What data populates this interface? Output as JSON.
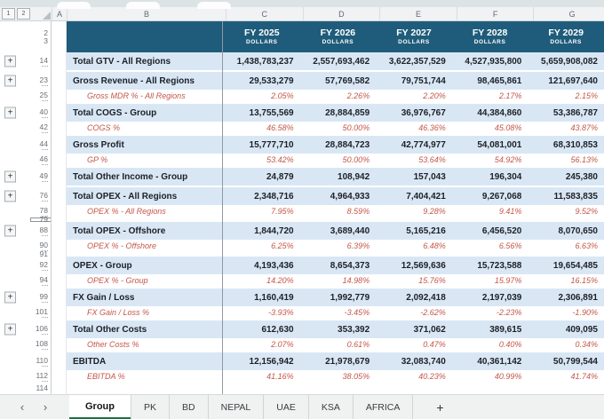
{
  "outline": {
    "level1": "1",
    "level2": "2"
  },
  "columns": [
    "A",
    "B",
    "C",
    "D",
    "E",
    "F",
    "G"
  ],
  "header": {
    "row_nums": [
      "2",
      "3"
    ],
    "years": [
      {
        "label": "FY 2025",
        "unit": "DOLLARS"
      },
      {
        "label": "FY 2026",
        "unit": "DOLLARS"
      },
      {
        "label": "FY 2027",
        "unit": "DOLLARS"
      },
      {
        "label": "FY 2028",
        "unit": "DOLLARS"
      },
      {
        "label": "FY 2029",
        "unit": "DOLLARS"
      }
    ]
  },
  "rows": [
    {
      "num": "14",
      "label": "Total GTV - All Regions",
      "type": "total",
      "plus": true,
      "tick": true,
      "values": [
        "1,438,783,237",
        "2,557,693,462",
        "3,622,357,529",
        "4,527,935,800",
        "5,659,908,082"
      ]
    },
    {
      "num": "23",
      "label": "Gross Revenue - All Regions",
      "type": "total",
      "plus": true,
      "tick": true,
      "gap": true,
      "values": [
        "29,533,279",
        "57,769,582",
        "79,751,744",
        "98,465,861",
        "121,697,640"
      ]
    },
    {
      "num": "25",
      "label": "Gross MDR % - All Regions",
      "type": "pct",
      "tick": true,
      "values": [
        "2.05%",
        "2.26%",
        "2.20%",
        "2.17%",
        "2.15%"
      ]
    },
    {
      "num": "40",
      "label": "Total COGS - Group",
      "type": "total",
      "plus": true,
      "tick": true,
      "gap": true,
      "values": [
        "13,755,569",
        "28,884,859",
        "36,976,767",
        "44,384,860",
        "53,386,787"
      ]
    },
    {
      "num": "42",
      "label": "COGS %",
      "type": "pct",
      "tick": true,
      "values": [
        "46.58%",
        "50.00%",
        "46.36%",
        "45.08%",
        "43.87%"
      ]
    },
    {
      "num": "44",
      "label": "Gross Profit",
      "type": "total",
      "tick": true,
      "gap": true,
      "values": [
        "15,777,710",
        "28,884,723",
        "42,774,977",
        "54,081,001",
        "68,310,853"
      ]
    },
    {
      "num": "46",
      "label": "GP %",
      "type": "pct",
      "tick": true,
      "values": [
        "53.42%",
        "50.00%",
        "53.64%",
        "54.92%",
        "56.13%"
      ]
    },
    {
      "num": "49",
      "label": "Total Other Income - Group",
      "type": "total",
      "plus": true,
      "tick": true,
      "gap": true,
      "values": [
        "24,879",
        "108,942",
        "157,043",
        "196,304",
        "245,380"
      ]
    },
    {
      "num": "76",
      "label": "Total OPEX - All Regions",
      "type": "total",
      "plus": true,
      "tick": true,
      "gap": true,
      "values": [
        "2,348,716",
        "4,964,933",
        "7,404,421",
        "9,267,068",
        "11,583,835"
      ]
    },
    {
      "num": "78",
      "label": "OPEX % - All Regions",
      "type": "pct",
      "tick": true,
      "values": [
        "7.95%",
        "8.59%",
        "9.28%",
        "9.41%",
        "9.52%"
      ]
    },
    {
      "num": "79",
      "label": "",
      "type": "spacer",
      "selected": true,
      "values": [
        "",
        "",
        "",
        "",
        ""
      ]
    },
    {
      "num": "88",
      "label": "Total OPEX - Offshore",
      "type": "total",
      "plus": true,
      "tick": true,
      "values": [
        "1,844,720",
        "3,689,440",
        "5,165,216",
        "6,456,520",
        "8,070,650"
      ]
    },
    {
      "num": "90",
      "label": "OPEX % - Offshore",
      "type": "pct",
      "tick": true,
      "values": [
        "6.25%",
        "6.39%",
        "6.48%",
        "6.56%",
        "6.63%"
      ]
    },
    {
      "num": "91",
      "label": "",
      "type": "spacer",
      "values": [
        "",
        "",
        "",
        "",
        ""
      ]
    },
    {
      "num": "92",
      "label": "OPEX - Group",
      "type": "total",
      "tick": true,
      "values": [
        "4,193,436",
        "8,654,373",
        "12,569,636",
        "15,723,588",
        "19,654,485"
      ]
    },
    {
      "num": "94",
      "label": "OPEX % - Group",
      "type": "pct",
      "tick": true,
      "values": [
        "14.20%",
        "14.98%",
        "15.76%",
        "15.97%",
        "16.15%"
      ]
    },
    {
      "num": "99",
      "label": "FX Gain / Loss",
      "type": "total",
      "plus": true,
      "tick": true,
      "gap": true,
      "values": [
        "1,160,419",
        "1,992,779",
        "2,092,418",
        "2,197,039",
        "2,306,891"
      ]
    },
    {
      "num": "101",
      "label": "FX Gain / Loss %",
      "type": "pct",
      "tick": true,
      "values": [
        "-3.93%",
        "-3.45%",
        "-2.62%",
        "-2.23%",
        "-1.90%"
      ]
    },
    {
      "num": "106",
      "label": "Total Other Costs",
      "type": "total",
      "plus": true,
      "tick": true,
      "gap": true,
      "values": [
        "612,630",
        "353,392",
        "371,062",
        "389,615",
        "409,095"
      ]
    },
    {
      "num": "108",
      "label": "Other Costs %",
      "type": "pct",
      "tick": true,
      "values": [
        "2.07%",
        "0.61%",
        "0.47%",
        "0.40%",
        "0.34%"
      ]
    },
    {
      "num": "110",
      "label": "EBITDA",
      "type": "total",
      "tick": true,
      "gap": true,
      "values": [
        "12,156,942",
        "21,978,679",
        "32,083,740",
        "40,361,142",
        "50,799,544"
      ]
    },
    {
      "num": "112",
      "label": "EBITDA %",
      "type": "pct",
      "tick": true,
      "values": [
        "41.16%",
        "38.05%",
        "40.23%",
        "40.99%",
        "41.74%"
      ]
    },
    {
      "num": "114",
      "label": "",
      "type": "empty",
      "values": [
        "",
        "",
        "",
        "",
        ""
      ]
    }
  ],
  "footer_tabs": {
    "prev": "‹",
    "next": "›",
    "active": "Group",
    "items": [
      "PK",
      "BD",
      "NEPAL",
      "UAE",
      "KSA",
      "AFRICA"
    ],
    "add_label": "+"
  },
  "colors": {
    "header_teal": "#1F5C7B",
    "band_blue": "#D9E7F5",
    "percent_red": "#C4564A",
    "tab_green": "#1E7145"
  }
}
